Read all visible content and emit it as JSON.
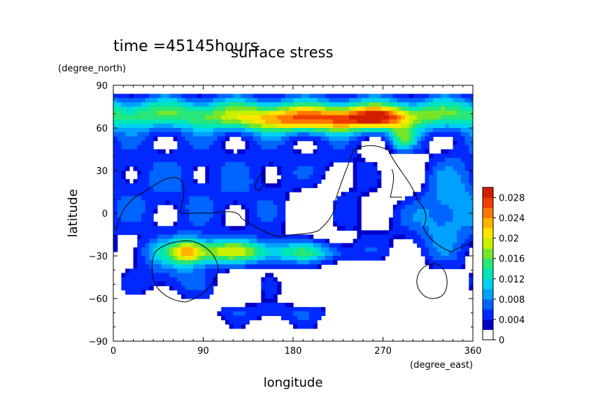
{
  "chart_data": {
    "type": "heatmap",
    "subtitle": "time =45145hours",
    "title": "surface stress",
    "xlabel": "longitude",
    "ylabel": "latitude",
    "x_units": "(degree_east)",
    "y_units": "(degree_north)",
    "xlim": [
      0,
      360
    ],
    "ylim": [
      -90,
      90
    ],
    "x_ticks": [
      0,
      90,
      180,
      270,
      360
    ],
    "y_ticks": [
      -90,
      -60,
      -30,
      0,
      30,
      60,
      90
    ],
    "x_tick_labels": [
      "0",
      "90",
      "180",
      "270",
      "360"
    ],
    "y_tick_labels": [
      "−90",
      "−60",
      "−30",
      "0",
      "30",
      "60",
      "90"
    ],
    "colorbar": {
      "min": 0,
      "max": 0.03,
      "tick_values": [
        0,
        0.004,
        0.008,
        0.012,
        0.016,
        0.02,
        0.024,
        0.028
      ],
      "tick_labels": [
        "0",
        "0.004",
        "0.008",
        "0.012",
        "0.016",
        "0.02",
        "0.024",
        "0.028"
      ],
      "colors": [
        "#ffffff",
        "#0000c8",
        "#0028ff",
        "#0064ff",
        "#00a0ff",
        "#00d2f0",
        "#00e6b4",
        "#28e678",
        "#78e628",
        "#c8f000",
        "#ffe600",
        "#ffb400",
        "#ff7800",
        "#f03c00",
        "#d21e00"
      ]
    },
    "features": [
      {
        "name": "northern high-latitude band",
        "lon_range": [
          0,
          360
        ],
        "lat_range": [
          55,
          85
        ],
        "value": 0.016
      },
      {
        "name": "northern jet core",
        "lon_range": [
          120,
          300
        ],
        "lat_range": [
          55,
          72
        ],
        "value": 0.026
      },
      {
        "name": "southern mid-latitude band",
        "lon_range": [
          50,
          230
        ],
        "lat_range": [
          -40,
          -18
        ],
        "value": 0.02
      },
      {
        "name": "southern jet core",
        "lon_range": [
          60,
          160
        ],
        "lat_range": [
          -35,
          -20
        ],
        "value": 0.026
      },
      {
        "name": "southern high-latitude floor",
        "lon_range": [
          60,
          250
        ],
        "lat_range": [
          -78,
          -62
        ],
        "value": 0.004
      }
    ]
  }
}
